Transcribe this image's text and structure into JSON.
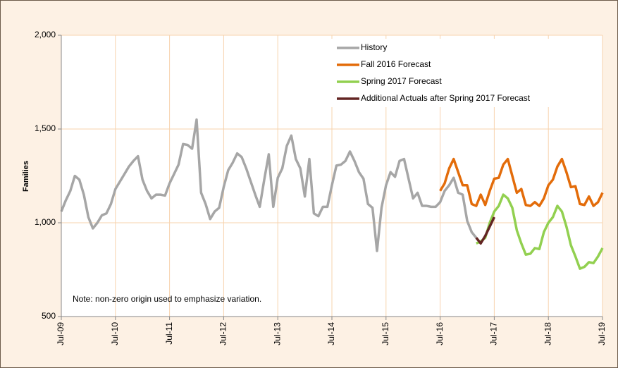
{
  "chart_data": {
    "type": "line",
    "y_label": "Families",
    "annotation": "Note: non-zero origin used to emphasize variation.",
    "ylim": [
      500,
      2000
    ],
    "yticks": [
      {
        "value": 500,
        "label": "500"
      },
      {
        "value": 1000,
        "label": "1,000"
      },
      {
        "value": 1500,
        "label": "1,500"
      },
      {
        "value": 2000,
        "label": "2,000"
      }
    ],
    "grid": true,
    "legend": "upper right",
    "categories": [
      "Jul-09",
      null,
      null,
      null,
      null,
      null,
      null,
      null,
      null,
      null,
      null,
      null,
      "Jul-10",
      null,
      null,
      null,
      null,
      null,
      null,
      null,
      null,
      null,
      null,
      null,
      "Jul-11",
      null,
      null,
      null,
      null,
      null,
      null,
      null,
      null,
      null,
      null,
      null,
      "Jul-12",
      null,
      null,
      null,
      null,
      null,
      null,
      null,
      null,
      null,
      null,
      null,
      "Jul-13",
      null,
      null,
      null,
      null,
      null,
      null,
      null,
      null,
      null,
      null,
      null,
      "Jul-14",
      null,
      null,
      null,
      null,
      null,
      null,
      null,
      null,
      null,
      null,
      null,
      "Jul-15",
      null,
      null,
      null,
      null,
      null,
      null,
      null,
      null,
      null,
      null,
      null,
      "Jul-16",
      null,
      null,
      null,
      null,
      null,
      null,
      null,
      null,
      null,
      null,
      null,
      "Jul-17",
      null,
      null,
      null,
      null,
      null,
      null,
      null,
      null,
      null,
      null,
      null,
      "Jul-18",
      null,
      null,
      null,
      null,
      null,
      null,
      null,
      null,
      null,
      null,
      null,
      "Jul-19"
    ],
    "series": [
      {
        "name": "History",
        "color": "#a6a6a6",
        "values": [
          1060,
          1120,
          1170,
          1250,
          1230,
          1150,
          1030,
          970,
          1000,
          1040,
          1050,
          1100,
          1180,
          1220,
          1260,
          1300,
          1330,
          1355,
          1230,
          1170,
          1130,
          1150,
          1150,
          1145,
          1210,
          1260,
          1310,
          1420,
          1415,
          1395,
          1550,
          1160,
          1100,
          1020,
          1060,
          1080,
          1190,
          1280,
          1320,
          1370,
          1350,
          1290,
          1220,
          1150,
          1085,
          1230,
          1365,
          1085,
          1240,
          1290,
          1410,
          1465,
          1340,
          1290,
          1140,
          1340,
          1050,
          1035,
          1085,
          1085,
          1200,
          1305,
          1310,
          1330,
          1380,
          1330,
          1270,
          1235,
          1100,
          1080,
          850,
          1080,
          1200,
          1270,
          1245,
          1330,
          1340,
          1235,
          1130,
          1160,
          1090,
          1090,
          1085,
          1085,
          1110,
          1170,
          1200,
          1240,
          1160,
          1150,
          1010,
          950,
          920,
          null,
          null,
          null,
          null,
          null,
          null,
          null,
          null,
          null,
          null,
          null,
          null,
          null,
          null,
          null,
          null,
          null,
          null,
          null,
          null,
          null,
          null,
          null,
          null,
          null,
          null,
          null,
          null
        ]
      },
      {
        "name": "Fall 2016 Forecast",
        "color": "#e36c0a",
        "values": [
          null,
          null,
          null,
          null,
          null,
          null,
          null,
          null,
          null,
          null,
          null,
          null,
          null,
          null,
          null,
          null,
          null,
          null,
          null,
          null,
          null,
          null,
          null,
          null,
          null,
          null,
          null,
          null,
          null,
          null,
          null,
          null,
          null,
          null,
          null,
          null,
          null,
          null,
          null,
          null,
          null,
          null,
          null,
          null,
          null,
          null,
          null,
          null,
          null,
          null,
          null,
          null,
          null,
          null,
          null,
          null,
          null,
          null,
          null,
          null,
          null,
          null,
          null,
          null,
          null,
          null,
          null,
          null,
          null,
          null,
          null,
          null,
          null,
          null,
          null,
          null,
          null,
          null,
          null,
          null,
          null,
          null,
          null,
          null,
          1170,
          1210,
          1290,
          1340,
          1270,
          1200,
          1200,
          1100,
          1090,
          1150,
          1095,
          1170,
          1235,
          1240,
          1310,
          1340,
          1250,
          1160,
          1180,
          1095,
          1090,
          1110,
          1090,
          1130,
          1200,
          1230,
          1300,
          1340,
          1270,
          1190,
          1195,
          1100,
          1095,
          1140,
          1090,
          1110,
          1160
        ]
      },
      {
        "name": "Spring 2017 Forecast",
        "color": "#92d050",
        "values": [
          null,
          null,
          null,
          null,
          null,
          null,
          null,
          null,
          null,
          null,
          null,
          null,
          null,
          null,
          null,
          null,
          null,
          null,
          null,
          null,
          null,
          null,
          null,
          null,
          null,
          null,
          null,
          null,
          null,
          null,
          null,
          null,
          null,
          null,
          null,
          null,
          null,
          null,
          null,
          null,
          null,
          null,
          null,
          null,
          null,
          null,
          null,
          null,
          null,
          null,
          null,
          null,
          null,
          null,
          null,
          null,
          null,
          null,
          null,
          null,
          null,
          null,
          null,
          null,
          null,
          null,
          null,
          null,
          null,
          null,
          null,
          null,
          null,
          null,
          null,
          null,
          null,
          null,
          null,
          null,
          null,
          null,
          null,
          null,
          null,
          null,
          null,
          null,
          null,
          null,
          null,
          null,
          890,
          900,
          920,
          1000,
          1060,
          1090,
          1150,
          1130,
          1080,
          960,
          890,
          830,
          835,
          865,
          860,
          950,
          1000,
          1030,
          1090,
          1060,
          980,
          880,
          820,
          755,
          765,
          790,
          785,
          820,
          865
        ]
      },
      {
        "name": "Additional Actuals after Spring 2017 Forecast",
        "color": "#632523",
        "values": [
          null,
          null,
          null,
          null,
          null,
          null,
          null,
          null,
          null,
          null,
          null,
          null,
          null,
          null,
          null,
          null,
          null,
          null,
          null,
          null,
          null,
          null,
          null,
          null,
          null,
          null,
          null,
          null,
          null,
          null,
          null,
          null,
          null,
          null,
          null,
          null,
          null,
          null,
          null,
          null,
          null,
          null,
          null,
          null,
          null,
          null,
          null,
          null,
          null,
          null,
          null,
          null,
          null,
          null,
          null,
          null,
          null,
          null,
          null,
          null,
          null,
          null,
          null,
          null,
          null,
          null,
          null,
          null,
          null,
          null,
          null,
          null,
          null,
          null,
          null,
          null,
          null,
          null,
          null,
          null,
          null,
          null,
          null,
          null,
          null,
          null,
          null,
          null,
          null,
          null,
          null,
          null,
          920,
          890,
          930,
          980,
          1030,
          null,
          null,
          null,
          null,
          null,
          null,
          null,
          null,
          null,
          null,
          null,
          null,
          null,
          null,
          null,
          null,
          null,
          null,
          null,
          null,
          null,
          null,
          null,
          null
        ]
      }
    ]
  }
}
